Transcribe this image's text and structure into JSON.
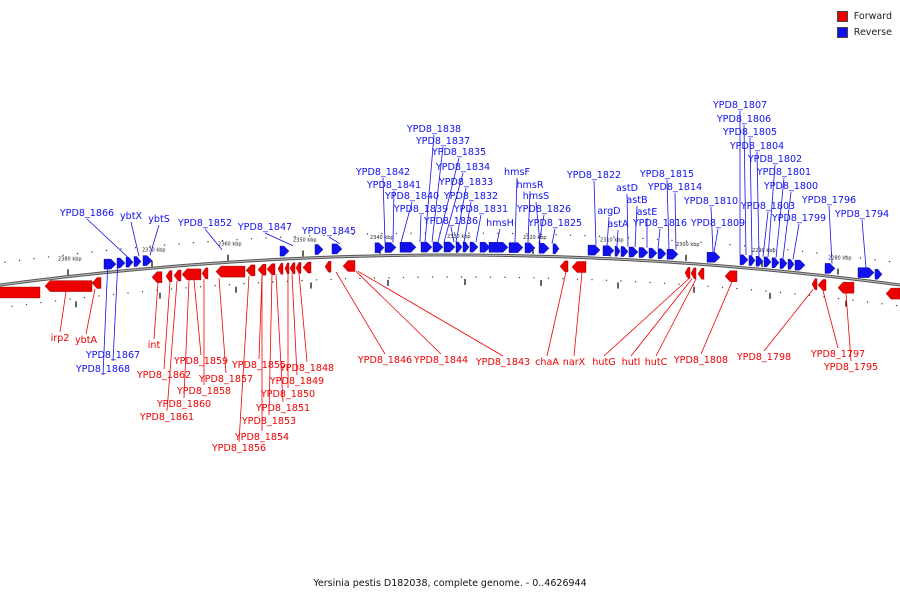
{
  "legend": [
    {
      "label": "Forward",
      "color": "#ee0000"
    },
    {
      "label": "Reverse",
      "color": "#1111ee"
    }
  ],
  "caption": "Yersinia pestis D182038, complete genome. - 0..4626944",
  "colors": {
    "forward": "#ee0000",
    "reverse": "#1111ee",
    "backbone": "#777777"
  },
  "scale_labels": [
    "2380 kbp",
    "2370 kbp",
    "2360 kbp",
    "2350 kbp",
    "2340 kbp",
    "2330 kbp",
    "2320 kbp",
    "2310 kbp",
    "2300 kbp",
    "2290 kbp",
    "2280 kbp"
  ],
  "reverse_labels": [
    "YPD8_1866",
    "ybtX",
    "ybtS",
    "YPD8_1852",
    "YPD8_1847",
    "YPD8_1845",
    "YPD8_1842",
    "YPD8_1841",
    "YPD8_1840",
    "YPD8_1839",
    "YPD8_1838",
    "YPD8_1837",
    "YPD8_1836",
    "YPD8_1835",
    "YPD8_1834",
    "YPD8_1833",
    "YPD8_1832",
    "YPD8_1831",
    "hmsF",
    "hmsH",
    "hmsR",
    "hmsS",
    "YPD8_1826",
    "YPD8_1825",
    "YPD8_1822",
    "argD",
    "astA",
    "astD",
    "astB",
    "astE",
    "YPD8_1816",
    "YPD8_1815",
    "YPD8_1814",
    "YPD8_1810",
    "YPD8_1809",
    "YPD8_1807",
    "YPD8_1806",
    "YPD8_1805",
    "YPD8_1804",
    "YPD8_1803",
    "YPD8_1802",
    "YPD8_1801",
    "YPD8_1800",
    "YPD8_1799",
    "YPD8_1796",
    "YPD8_1794",
    "YPD8_1867",
    "YPD8_1868"
  ],
  "forward_labels": [
    "irp2",
    "ybtA",
    "int",
    "YPD8_1862",
    "YPD8_1861",
    "YPD8_1860",
    "YPD8_1859",
    "YPD8_1858",
    "YPD8_1857",
    "YPD8_1856",
    "YPD8_1855",
    "YPD8_1854",
    "YPD8_1853",
    "YPD8_1851",
    "YPD8_1850",
    "YPD8_1849",
    "YPD8_1848",
    "YPD8_1846",
    "YPD8_1844",
    "YPD8_1843",
    "chaA",
    "narX",
    "hutG",
    "hutI",
    "hutC",
    "YPD8_1808",
    "YPD8_1798",
    "YPD8_1797",
    "YPD8_1795"
  ]
}
